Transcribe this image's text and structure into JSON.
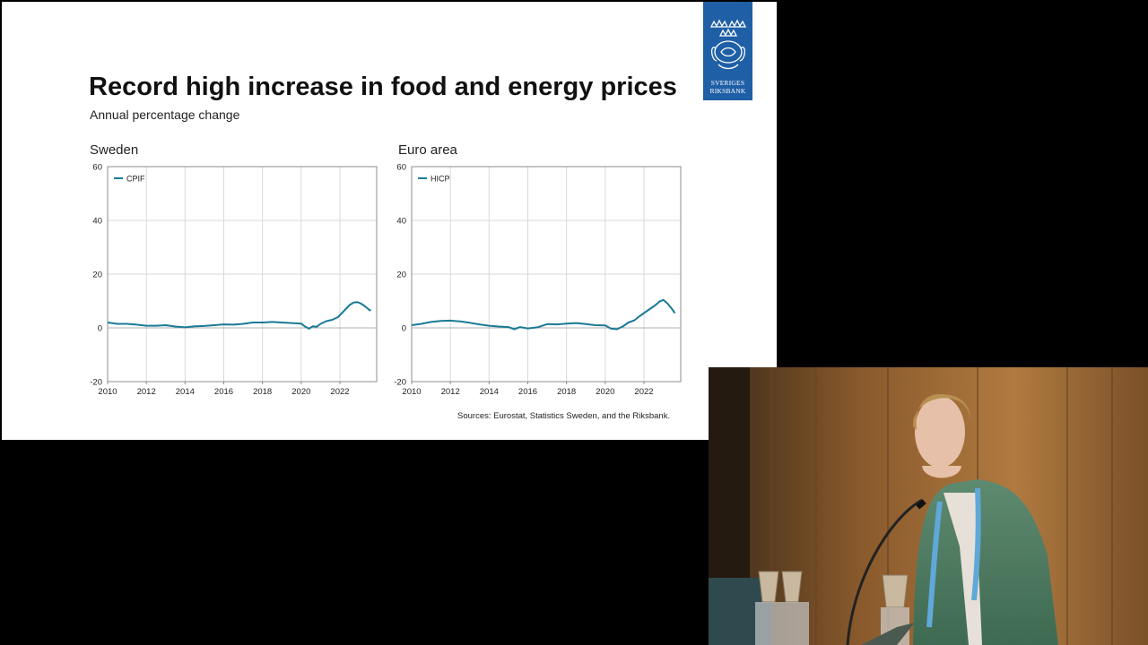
{
  "slide": {
    "title": "Record high increase in food and energy prices",
    "subtitle": "Annual percentage change",
    "sources": "Sources: Eurostat, Statistics Sweden, and the Riksbank.",
    "logo_text": "SVERIGES\nRIKSBANK"
  },
  "colors": {
    "series": "#1a7a96",
    "grid": "#d9d9d9",
    "axis": "#8c8c8c",
    "logo_bg": "#1f5fa6"
  },
  "chart_data": [
    {
      "type": "line",
      "title": "Sweden",
      "xlim": [
        2010,
        2023.9
      ],
      "ylim": [
        -20,
        60
      ],
      "yticks": [
        -20,
        0,
        20,
        40,
        60
      ],
      "xticks": [
        2010,
        2012,
        2014,
        2016,
        2018,
        2020,
        2022
      ],
      "grid": true,
      "legend": "top-left",
      "series": [
        {
          "name": "CPIF",
          "x": [
            2010,
            2010.5,
            2011,
            2011.5,
            2012,
            2012.5,
            2013,
            2013.5,
            2014,
            2014.5,
            2015,
            2015.5,
            2016,
            2016.5,
            2017,
            2017.5,
            2018,
            2018.5,
            2019,
            2019.5,
            2020,
            2020.2,
            2020.4,
            2020.6,
            2020.8,
            2021,
            2021.3,
            2021.6,
            2021.9,
            2022.1,
            2022.3,
            2022.5,
            2022.7,
            2022.9,
            2023.1,
            2023.3,
            2023.5,
            2023.6
          ],
          "y": [
            2.0,
            1.5,
            1.5,
            1.2,
            0.8,
            0.8,
            1.0,
            0.5,
            0.2,
            0.6,
            0.7,
            1.0,
            1.3,
            1.2,
            1.5,
            2.0,
            2.0,
            2.2,
            2.0,
            1.8,
            1.6,
            0.5,
            -0.3,
            0.6,
            0.4,
            1.5,
            2.5,
            3.0,
            4.0,
            5.5,
            7.0,
            8.5,
            9.4,
            9.6,
            9.0,
            8.0,
            6.8,
            6.4
          ]
        }
      ]
    },
    {
      "type": "line",
      "title": "Euro area",
      "xlim": [
        2010,
        2023.9
      ],
      "ylim": [
        -20,
        60
      ],
      "yticks": [
        -20,
        0,
        20,
        40,
        60
      ],
      "xticks": [
        2010,
        2012,
        2014,
        2016,
        2018,
        2020,
        2022
      ],
      "grid": true,
      "legend": "top-left",
      "series": [
        {
          "name": "HICP",
          "x": [
            2010,
            2010.5,
            2011,
            2011.5,
            2012,
            2012.5,
            2013,
            2013.5,
            2014,
            2014.5,
            2015,
            2015.3,
            2015.6,
            2016,
            2016.5,
            2017,
            2017.5,
            2018,
            2018.5,
            2019,
            2019.5,
            2020,
            2020.3,
            2020.6,
            2020.9,
            2021.2,
            2021.5,
            2021.8,
            2022,
            2022.3,
            2022.6,
            2022.8,
            2023,
            2023.2,
            2023.4,
            2023.6
          ],
          "y": [
            1.0,
            1.5,
            2.2,
            2.6,
            2.7,
            2.4,
            1.9,
            1.3,
            0.8,
            0.5,
            0.3,
            -0.5,
            0.3,
            -0.2,
            0.2,
            1.4,
            1.3,
            1.6,
            1.8,
            1.4,
            1.0,
            0.9,
            -0.3,
            -0.5,
            0.5,
            2.0,
            2.8,
            4.5,
            5.5,
            7.0,
            8.5,
            9.8,
            10.4,
            9.2,
            7.5,
            5.5
          ]
        }
      ]
    }
  ]
}
